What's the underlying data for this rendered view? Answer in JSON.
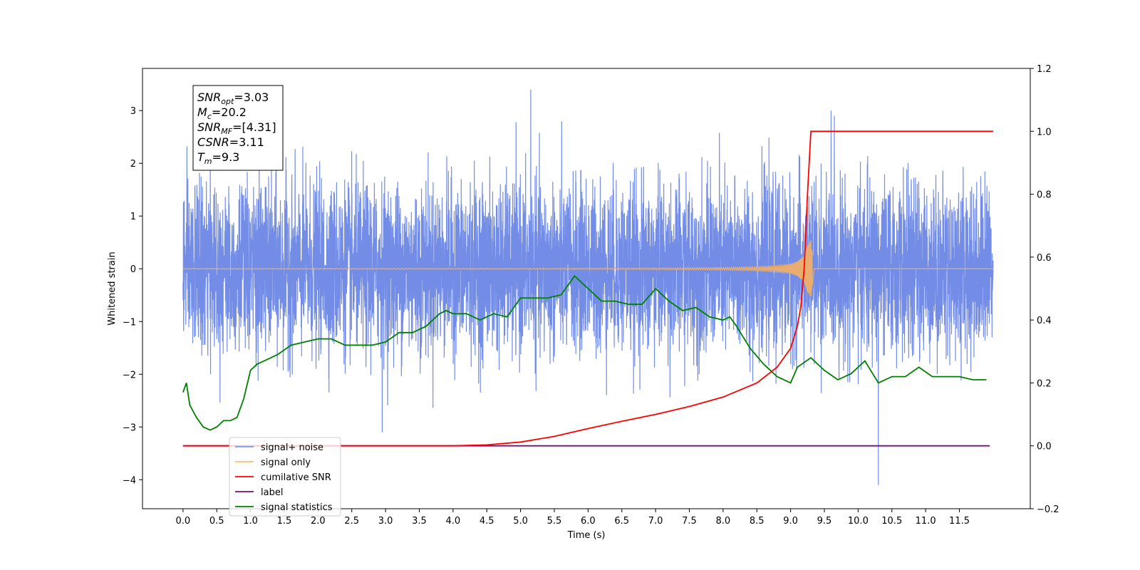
{
  "chart_data": {
    "type": "line",
    "title": "",
    "xlabel": "Time (s)",
    "ylabel": "Whitened strain",
    "y2label": "",
    "xlim": [
      -0.6,
      12.55
    ],
    "ylim": [
      -4.55,
      3.8
    ],
    "y2lim": [
      -0.2,
      1.2
    ],
    "x_ticks": [
      "0.0",
      "0.5",
      "1.0",
      "1.5",
      "2.0",
      "2.5",
      "3.0",
      "3.5",
      "4.0",
      "4.5",
      "5.0",
      "5.5",
      "6.0",
      "6.5",
      "7.0",
      "7.5",
      "8.0",
      "8.5",
      "9.0",
      "9.5",
      "10.0",
      "10.5",
      "11.0",
      "11.5"
    ],
    "y_ticks": [
      "3",
      "2",
      "1",
      "0",
      "−1",
      "−2",
      "−3",
      "−4"
    ],
    "y2_ticks": [
      "1.2",
      "1.0",
      "0.8",
      "0.6",
      "0.4",
      "0.2",
      "0.0",
      "−0.2"
    ],
    "grid": false,
    "legend_position": "lower-left",
    "annotations": [
      {
        "name": "SNR",
        "sub": "opt",
        "text": "=3.03"
      },
      {
        "name": "M",
        "sub": "c",
        "text": "=20.2"
      },
      {
        "name": "SNR",
        "sub": "MF",
        "text": "=[4.31]"
      },
      {
        "name": "CSNR",
        "sub": "",
        "text": "=3.11"
      },
      {
        "name": "T",
        "sub": "m",
        "text": "=9.3"
      }
    ],
    "series": [
      {
        "name": "signal+ noise",
        "color": "#6b87e6",
        "axis": "left",
        "description": "whitened strain noise, approx. ±1.5 band with spikes",
        "x_range": [
          0.0,
          12.0
        ],
        "sample_peaks": [
          {
            "x": 5.15,
            "y": 3.4
          },
          {
            "x": 9.6,
            "y": 3.0
          },
          {
            "x": 10.3,
            "y": -4.1
          },
          {
            "x": 2.95,
            "y": -3.1
          }
        ]
      },
      {
        "name": "signal only",
        "color": "#f5b062",
        "axis": "left",
        "description": "chirp signal growing to merger",
        "x": [
          0.0,
          5.0,
          7.0,
          8.0,
          8.5,
          8.8,
          9.0,
          9.1,
          9.2,
          9.25,
          9.3,
          9.35,
          12.0
        ],
        "amplitude": [
          0.005,
          0.01,
          0.015,
          0.025,
          0.04,
          0.06,
          0.09,
          0.14,
          0.25,
          0.45,
          0.55,
          0.0,
          0.0
        ]
      },
      {
        "name": "cumilative SNR",
        "color": "#ff0000",
        "axis": "right",
        "x": [
          0.0,
          3.0,
          4.0,
          4.5,
          5.0,
          5.5,
          6.0,
          6.5,
          7.0,
          7.5,
          8.0,
          8.5,
          8.8,
          9.0,
          9.1,
          9.15,
          9.2,
          9.25,
          9.3,
          9.35,
          12.0
        ],
        "values": [
          0.0,
          0.0,
          0.0,
          0.003,
          0.012,
          0.03,
          0.055,
          0.078,
          0.1,
          0.125,
          0.155,
          0.2,
          0.25,
          0.31,
          0.38,
          0.44,
          0.56,
          0.8,
          1.0,
          1.0,
          1.0
        ]
      },
      {
        "name": "label",
        "color": "#7b0a7b",
        "axis": "right",
        "x": [
          0.0,
          11.95
        ],
        "values": [
          0.0,
          0.0
        ]
      },
      {
        "name": "signal statistics",
        "color": "#008000",
        "axis": "right",
        "x": [
          0.0,
          0.05,
          0.1,
          0.2,
          0.3,
          0.4,
          0.5,
          0.6,
          0.7,
          0.8,
          0.9,
          1.0,
          1.1,
          1.2,
          1.4,
          1.6,
          1.8,
          2.0,
          2.2,
          2.4,
          2.6,
          2.8,
          3.0,
          3.2,
          3.4,
          3.6,
          3.8,
          3.9,
          4.0,
          4.2,
          4.4,
          4.6,
          4.8,
          5.0,
          5.2,
          5.4,
          5.6,
          5.8,
          6.0,
          6.2,
          6.4,
          6.6,
          6.8,
          7.0,
          7.2,
          7.4,
          7.6,
          7.8,
          8.0,
          8.1,
          8.2,
          8.4,
          8.6,
          8.8,
          9.0,
          9.1,
          9.3,
          9.5,
          9.7,
          9.9,
          10.1,
          10.3,
          10.5,
          10.7,
          10.9,
          11.1,
          11.3,
          11.5,
          11.7,
          11.9
        ],
        "values": [
          0.17,
          0.2,
          0.13,
          0.09,
          0.06,
          0.05,
          0.06,
          0.08,
          0.08,
          0.09,
          0.15,
          0.24,
          0.26,
          0.27,
          0.29,
          0.32,
          0.33,
          0.34,
          0.34,
          0.32,
          0.32,
          0.32,
          0.33,
          0.36,
          0.36,
          0.38,
          0.42,
          0.43,
          0.42,
          0.42,
          0.4,
          0.42,
          0.41,
          0.47,
          0.47,
          0.47,
          0.48,
          0.54,
          0.5,
          0.46,
          0.46,
          0.45,
          0.45,
          0.5,
          0.46,
          0.43,
          0.44,
          0.41,
          0.4,
          0.41,
          0.38,
          0.31,
          0.26,
          0.22,
          0.2,
          0.25,
          0.28,
          0.24,
          0.21,
          0.23,
          0.27,
          0.2,
          0.22,
          0.22,
          0.25,
          0.22,
          0.22,
          0.22,
          0.21,
          0.21
        ]
      }
    ]
  }
}
